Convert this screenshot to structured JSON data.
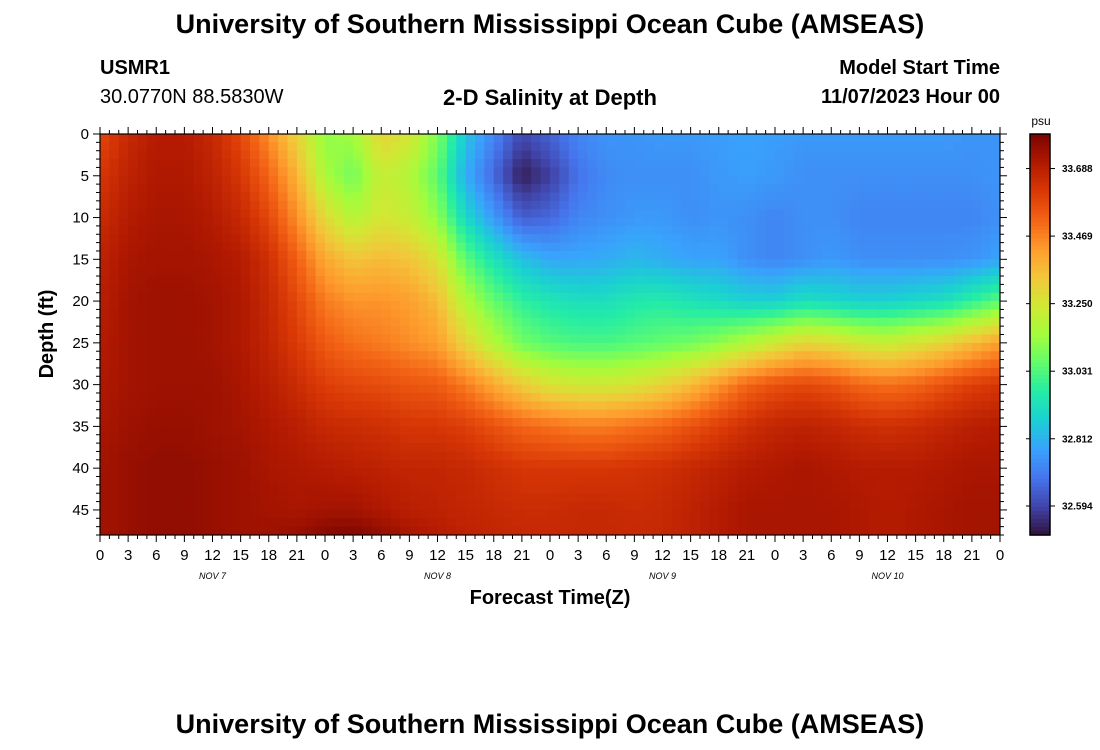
{
  "header": {
    "title_top": "University of Southern Mississippi Ocean Cube (AMSEAS)",
    "station": "USMR1",
    "coords": "30.0770N  88.5830W",
    "plot_title": "2-D Salinity at Depth",
    "model_label": "Model Start Time",
    "model_time": "11/07/2023 Hour 00",
    "title_bottom": "University of Southern Mississippi Ocean Cube (AMSEAS)"
  },
  "chart_data": {
    "type": "heatmap",
    "title": "2-D Salinity at Depth",
    "xlabel": "Forecast Time(Z)",
    "ylabel": "Depth (ft)",
    "x_ticks": [
      "0",
      "3",
      "6",
      "9",
      "12",
      "15",
      "18",
      "21",
      "0",
      "3",
      "6",
      "9",
      "12",
      "15",
      "18",
      "21",
      "0",
      "3",
      "6",
      "9",
      "12",
      "15",
      "18",
      "21",
      "0",
      "3",
      "6",
      "9",
      "12",
      "15",
      "18",
      "21",
      "0"
    ],
    "x_range_hours": [
      0,
      96
    ],
    "day_labels": [
      {
        "label": "NOV 7",
        "hour": 12
      },
      {
        "label": "NOV 8",
        "hour": 36
      },
      {
        "label": "NOV 9",
        "hour": 60
      },
      {
        "label": "NOV 10",
        "hour": 84
      }
    ],
    "y_ticks": [
      0,
      5,
      10,
      15,
      20,
      25,
      30,
      35,
      40,
      45
    ],
    "ylim": [
      0,
      48
    ],
    "colorbar": {
      "unit": "psu",
      "min": 32.5,
      "max": 33.8,
      "tick_values": [
        33.688,
        33.469,
        33.25,
        33.031,
        32.812,
        32.594
      ],
      "tick_labels": [
        "33.688",
        "33.469",
        "33.250",
        "33.031",
        "32.812",
        "32.594"
      ],
      "stops": [
        "#30123b",
        "#4145ab",
        "#4675ed",
        "#39a2fc",
        "#1bcfd4",
        "#24eca6",
        "#61fc6c",
        "#a4fc3b",
        "#d1e834",
        "#f3c63a",
        "#fe9b2d",
        "#f36315",
        "#d93806",
        "#b11901",
        "#7a0402"
      ]
    },
    "salinity_grid": {
      "hours": [
        0,
        3,
        6,
        9,
        12,
        15,
        18,
        21,
        24,
        27,
        30,
        33,
        36,
        39,
        42,
        45,
        48,
        51,
        54,
        57,
        60,
        63,
        66,
        69,
        72,
        75,
        78,
        81,
        84,
        87,
        90,
        93,
        96
      ],
      "depths_ft": [
        0,
        5,
        10,
        15,
        20,
        25,
        30,
        35,
        40,
        45,
        48
      ],
      "values": [
        [
          33.58,
          33.66,
          33.7,
          33.7,
          33.66,
          33.58,
          33.45,
          33.3,
          33.12,
          33.15,
          33.3,
          33.25,
          33.1,
          32.85,
          32.72,
          32.6,
          32.65,
          32.72,
          32.75,
          32.75,
          32.76,
          32.76,
          32.77,
          32.78,
          32.77,
          32.76,
          32.76,
          32.76,
          32.76,
          32.76,
          32.76,
          32.75,
          32.75
        ],
        [
          33.62,
          33.68,
          33.71,
          33.71,
          33.68,
          33.62,
          33.52,
          33.38,
          33.16,
          33.08,
          33.22,
          33.18,
          33.05,
          32.8,
          32.66,
          32.52,
          32.58,
          32.68,
          32.73,
          32.74,
          32.74,
          32.74,
          32.76,
          32.77,
          32.76,
          32.74,
          32.74,
          32.74,
          32.74,
          32.74,
          32.74,
          32.74,
          32.75
        ],
        [
          33.65,
          33.7,
          33.72,
          33.72,
          33.7,
          33.66,
          33.58,
          33.45,
          33.28,
          33.18,
          33.25,
          33.22,
          33.12,
          32.9,
          32.76,
          32.64,
          32.66,
          32.72,
          32.74,
          32.76,
          32.76,
          32.74,
          32.75,
          32.74,
          32.72,
          32.74,
          32.74,
          32.72,
          32.72,
          32.72,
          32.72,
          32.72,
          32.74
        ],
        [
          33.68,
          33.72,
          33.73,
          33.73,
          33.72,
          33.7,
          33.64,
          33.53,
          33.4,
          33.34,
          33.36,
          33.34,
          33.26,
          33.05,
          32.93,
          32.84,
          32.79,
          32.79,
          32.8,
          32.82,
          32.8,
          32.78,
          32.78,
          32.74,
          32.72,
          32.74,
          32.76,
          32.74,
          32.74,
          32.74,
          32.74,
          32.75,
          32.78
        ],
        [
          33.69,
          33.73,
          33.74,
          33.74,
          33.73,
          33.71,
          33.66,
          33.58,
          33.48,
          33.44,
          33.44,
          33.42,
          33.36,
          33.18,
          33.06,
          32.98,
          32.94,
          32.92,
          32.92,
          32.95,
          32.96,
          32.93,
          32.91,
          32.88,
          32.88,
          32.92,
          32.9,
          32.88,
          32.88,
          32.9,
          32.92,
          32.98,
          33.05
        ],
        [
          33.7,
          33.73,
          33.74,
          33.74,
          33.73,
          33.71,
          33.67,
          33.61,
          33.54,
          33.5,
          33.48,
          33.45,
          33.42,
          33.3,
          33.18,
          33.08,
          33.04,
          33.02,
          33.02,
          33.04,
          33.06,
          33.08,
          33.12,
          33.18,
          33.24,
          33.3,
          33.28,
          33.24,
          33.22,
          33.26,
          33.3,
          33.36,
          33.42
        ],
        [
          33.71,
          33.73,
          33.74,
          33.74,
          33.74,
          33.72,
          33.69,
          33.65,
          33.6,
          33.58,
          33.57,
          33.55,
          33.54,
          33.48,
          33.4,
          33.32,
          33.26,
          33.24,
          33.24,
          33.26,
          33.3,
          33.36,
          33.44,
          33.52,
          33.56,
          33.58,
          33.56,
          33.52,
          33.5,
          33.52,
          33.56,
          33.6,
          33.62
        ],
        [
          33.72,
          33.74,
          33.75,
          33.75,
          33.74,
          33.73,
          33.71,
          33.69,
          33.66,
          33.65,
          33.64,
          33.62,
          33.62,
          33.6,
          33.56,
          33.52,
          33.5,
          33.48,
          33.48,
          33.5,
          33.52,
          33.56,
          33.6,
          33.64,
          33.67,
          33.68,
          33.67,
          33.65,
          33.64,
          33.65,
          33.67,
          33.69,
          33.7
        ],
        [
          33.73,
          33.75,
          33.76,
          33.76,
          33.75,
          33.74,
          33.72,
          33.71,
          33.7,
          33.69,
          33.68,
          33.67,
          33.67,
          33.66,
          33.64,
          33.62,
          33.62,
          33.62,
          33.62,
          33.63,
          33.64,
          33.66,
          33.68,
          33.7,
          33.71,
          33.72,
          33.71,
          33.7,
          33.7,
          33.7,
          33.71,
          33.72,
          33.72
        ],
        [
          33.73,
          33.75,
          33.76,
          33.76,
          33.75,
          33.74,
          33.73,
          33.72,
          33.73,
          33.73,
          33.71,
          33.69,
          33.68,
          33.67,
          33.66,
          33.65,
          33.65,
          33.66,
          33.66,
          33.65,
          33.66,
          33.68,
          33.7,
          33.72,
          33.72,
          33.72,
          33.72,
          33.71,
          33.7,
          33.71,
          33.72,
          33.73,
          33.73
        ],
        [
          33.73,
          33.75,
          33.76,
          33.76,
          33.75,
          33.74,
          33.74,
          33.75,
          33.78,
          33.79,
          33.76,
          33.72,
          33.7,
          33.68,
          33.67,
          33.66,
          33.66,
          33.66,
          33.66,
          33.66,
          33.66,
          33.68,
          33.7,
          33.72,
          33.72,
          33.72,
          33.72,
          33.71,
          33.7,
          33.71,
          33.72,
          33.73,
          33.73
        ]
      ]
    }
  }
}
